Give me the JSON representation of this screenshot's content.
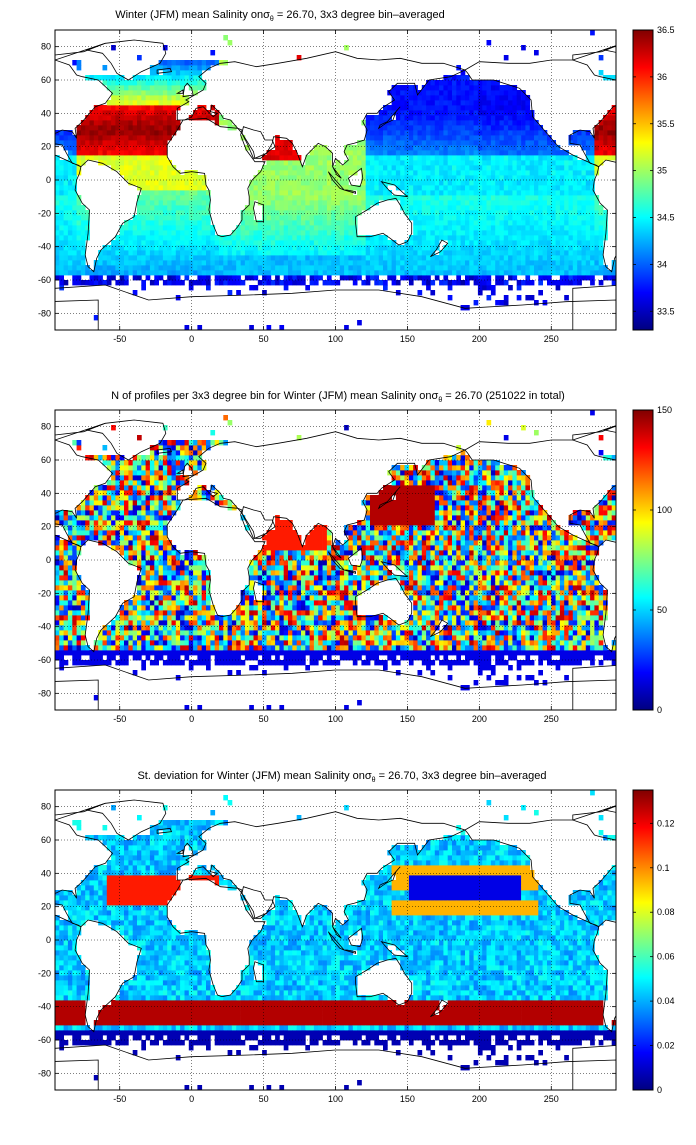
{
  "colors": {
    "colormap": "jet",
    "land": "#ffffff",
    "coast": "#000000",
    "grid": "#000000"
  },
  "chart_data": [
    {
      "type": "heatmap",
      "title_pre": "Winter (JFM) mean Salinity onσ",
      "title_sub": "θ",
      "title_post": " = 26.70, 3x3 degree bin–averaged",
      "xlim": [
        -95,
        295
      ],
      "ylim": [
        -90,
        90
      ],
      "xticks": [
        "-50",
        "0",
        "50",
        "100",
        "150",
        "200",
        "250"
      ],
      "yticks": [
        "80",
        "60",
        "40",
        "20",
        "0",
        "-20",
        "-40",
        "-60",
        "-80"
      ],
      "colorbar": {
        "min": 33.3,
        "max": 36.5,
        "ticks": [
          "36.5",
          "36",
          "35.5",
          "35",
          "34.5",
          "34",
          "33.5"
        ]
      },
      "grid": true,
      "bin_size_deg": 3
    },
    {
      "type": "heatmap",
      "title_pre": "N of profiles per 3x3 degree bin for Winter (JFM) mean Salinity onσ",
      "title_sub": "θ",
      "title_post": " = 26.70 (251022 in total)",
      "xlim": [
        -95,
        295
      ],
      "ylim": [
        -90,
        90
      ],
      "xticks": [
        "-50",
        "0",
        "50",
        "100",
        "150",
        "200",
        "250"
      ],
      "yticks": [
        "80",
        "60",
        "40",
        "20",
        "0",
        "-20",
        "-40",
        "-60",
        "-80"
      ],
      "colorbar": {
        "min": 0,
        "max": 150,
        "ticks": [
          "150",
          "100",
          "50",
          "0"
        ]
      },
      "grid": true,
      "bin_size_deg": 3
    },
    {
      "type": "heatmap",
      "title_pre": "St. deviation for Winter (JFM) mean Salinity onσ",
      "title_sub": "θ",
      "title_post": " = 26.70, 3x3 degree bin–averaged",
      "xlim": [
        -95,
        295
      ],
      "ylim": [
        -90,
        90
      ],
      "xticks": [
        "-50",
        "0",
        "50",
        "100",
        "150",
        "200",
        "250"
      ],
      "yticks": [
        "80",
        "60",
        "40",
        "20",
        "0",
        "-20",
        "-40",
        "-60",
        "-80"
      ],
      "colorbar": {
        "min": 0,
        "max": 0.135,
        "ticks": [
          "0.12",
          "0.1",
          "0.08",
          "0.06",
          "0.04",
          "0.02",
          "0"
        ]
      },
      "grid": true,
      "bin_size_deg": 3
    }
  ]
}
